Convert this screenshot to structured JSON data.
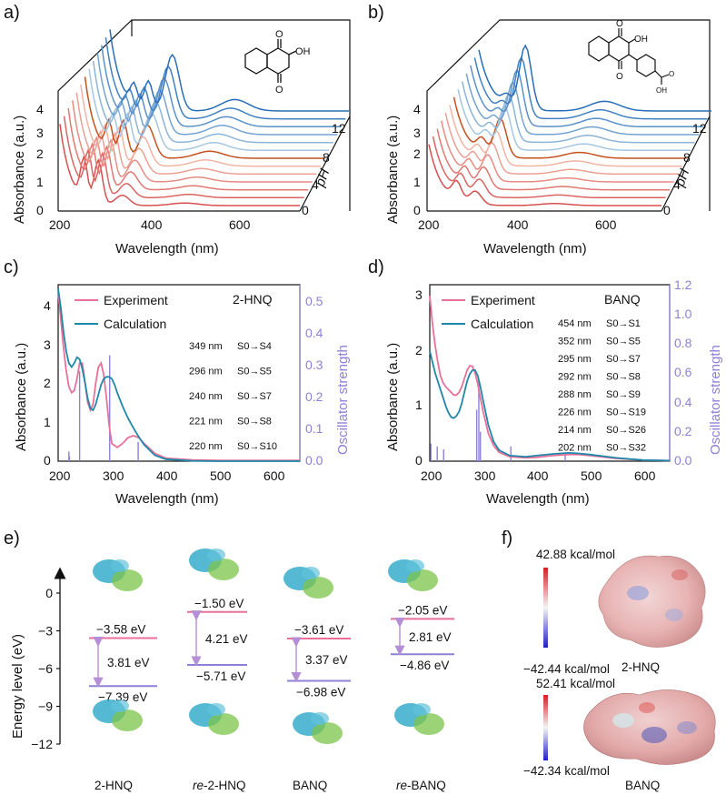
{
  "panels": {
    "a": {
      "letter": "a)",
      "ylabel": "Absorbance (a.u.)",
      "xlabel": "Wavelength (nm)",
      "zlabel": "pH"
    },
    "b": {
      "letter": "b)",
      "ylabel": "Absorbance (a.u.)",
      "xlabel": "Wavelength (nm)",
      "zlabel": "pH"
    },
    "c": {
      "letter": "c)",
      "ylabel": "Absorbance (a.u.)",
      "y2label": "Oscillator strength",
      "xlabel": "Wavelength (nm)",
      "compound": "2-HNQ"
    },
    "d": {
      "letter": "d)",
      "ylabel": "Absorbance (a.u.)",
      "y2label": "Oscillator strength",
      "xlabel": "Wavelength (nm)",
      "compound": "BANQ"
    },
    "e": {
      "letter": "e)",
      "ylabel": "Energy level (eV)"
    },
    "f": {
      "letter": "f)"
    }
  },
  "chart_data": [
    {
      "type": "line",
      "panel": "a",
      "description_free": true,
      "xlabel": "Wavelength (nm)",
      "ylabel": "Absorbance (a.u.)",
      "zlabel": "pH",
      "x_ticks": [
        "200",
        "400",
        "600"
      ],
      "y_ticks": [
        "0",
        "1",
        "2",
        "3",
        "4"
      ],
      "z_ticks": [
        "0",
        "4",
        "8",
        "12"
      ],
      "xlim": [
        200,
        700
      ],
      "ylim": [
        0,
        4.5
      ],
      "zlim": [
        0,
        13
      ],
      "series_count": 13,
      "peaks_nm": [
        250,
        275,
        330
      ]
    },
    {
      "type": "line",
      "panel": "b",
      "xlabel": "Wavelength (nm)",
      "ylabel": "Absorbance (a.u.)",
      "zlabel": "pH",
      "x_ticks": [
        "200",
        "400",
        "600"
      ],
      "y_ticks": [
        "0",
        "1",
        "2",
        "3",
        "4"
      ],
      "z_ticks": [
        "0",
        "4",
        "8",
        "12"
      ],
      "xlim": [
        200,
        700
      ],
      "ylim": [
        0,
        4.5
      ],
      "zlim": [
        0,
        13
      ],
      "series_count": 13,
      "peaks_nm": [
        280,
        300
      ]
    },
    {
      "type": "line",
      "panel": "c",
      "xlabel": "Wavelength (nm)",
      "ylabel": "Absorbance (a.u.)",
      "y2label": "Oscillator strength",
      "xlim": [
        200,
        650
      ],
      "ylim": [
        0,
        4.5
      ],
      "y2lim": [
        0,
        0.55
      ],
      "x_ticks": [
        "200",
        "300",
        "400",
        "500",
        "600"
      ],
      "y_ticks": [
        "0",
        "1",
        "2",
        "3",
        "4"
      ],
      "y2_ticks": [
        "0.0",
        "0.1",
        "0.2",
        "0.3",
        "0.4",
        "0.5"
      ],
      "series": [
        {
          "name": "Experiment",
          "color": "#e8709b",
          "x": [
            200,
            205,
            210,
            215,
            220,
            225,
            230,
            235,
            240,
            245,
            250,
            255,
            260,
            265,
            270,
            275,
            280,
            285,
            290,
            295,
            300,
            310,
            320,
            330,
            340,
            350,
            360,
            380,
            400,
            450,
            500,
            550,
            600,
            650
          ],
          "y": [
            4.3,
            3.6,
            2.9,
            2.3,
            1.9,
            1.75,
            1.8,
            2.1,
            2.5,
            2.5,
            2.0,
            1.5,
            1.3,
            1.45,
            2.0,
            2.4,
            2.5,
            2.2,
            1.6,
            0.9,
            0.45,
            0.35,
            0.45,
            0.6,
            0.65,
            0.6,
            0.45,
            0.2,
            0.08,
            0.03,
            0.02,
            0.02,
            0.02,
            0.02
          ]
        },
        {
          "name": "Calculation",
          "color": "#1f88a8",
          "x": [
            200,
            205,
            210,
            215,
            220,
            225,
            230,
            235,
            240,
            245,
            250,
            255,
            260,
            265,
            270,
            275,
            280,
            285,
            290,
            295,
            300,
            305,
            310,
            320,
            330,
            340,
            350,
            360,
            380,
            400,
            450,
            500,
            550,
            600,
            650
          ],
          "y": [
            4.4,
            3.9,
            3.3,
            2.8,
            2.5,
            2.4,
            2.5,
            2.65,
            2.6,
            2.35,
            2.0,
            1.6,
            1.35,
            1.3,
            1.45,
            1.7,
            1.95,
            2.1,
            2.15,
            2.15,
            2.1,
            1.95,
            1.75,
            1.4,
            1.1,
            0.85,
            0.62,
            0.42,
            0.15,
            0.05,
            0.01,
            0.0,
            0.0,
            0.0,
            0.0
          ]
        }
      ],
      "sticks": {
        "color": "#8e80d8",
        "x": [
          220,
          221,
          240,
          296,
          349
        ],
        "f": [
          0.03,
          0.015,
          0.28,
          0.33,
          0.06
        ]
      },
      "legend": [
        "Experiment",
        "Calculation"
      ],
      "compound": "2-HNQ",
      "transitions": [
        {
          "nm": "349 nm",
          "label": "S0→S4"
        },
        {
          "nm": "296 nm",
          "label": "S0→S5"
        },
        {
          "nm": "240 nm",
          "label": "S0→S7"
        },
        {
          "nm": "221 nm",
          "label": "S0→S8"
        },
        {
          "nm": "220 nm",
          "label": "S0→S10"
        }
      ]
    },
    {
      "type": "line",
      "panel": "d",
      "xlabel": "Wavelength (nm)",
      "ylabel": "Absorbance (a.u.)",
      "y2label": "Oscillator strength",
      "xlim": [
        200,
        650
      ],
      "ylim": [
        0,
        3.2
      ],
      "y2lim": [
        0,
        1.2
      ],
      "x_ticks": [
        "200",
        "300",
        "400",
        "500",
        "600"
      ],
      "y_ticks": [
        "0",
        "1",
        "2",
        "3"
      ],
      "y2_ticks": [
        "0.0",
        "0.2",
        "0.4",
        "0.6",
        "0.8",
        "1.0",
        "1.2"
      ],
      "series": [
        {
          "name": "Experiment",
          "color": "#e8709b",
          "x": [
            200,
            205,
            210,
            215,
            220,
            225,
            230,
            235,
            240,
            245,
            250,
            255,
            260,
            265,
            270,
            275,
            280,
            285,
            290,
            295,
            300,
            310,
            320,
            330,
            350,
            380,
            400,
            430,
            460,
            480,
            500,
            550,
            600,
            650
          ],
          "y": [
            3.0,
            2.5,
            2.1,
            1.8,
            1.55,
            1.42,
            1.35,
            1.3,
            1.25,
            1.2,
            1.2,
            1.25,
            1.35,
            1.5,
            1.65,
            1.73,
            1.72,
            1.6,
            1.4,
            1.15,
            0.9,
            0.5,
            0.28,
            0.16,
            0.08,
            0.06,
            0.07,
            0.1,
            0.12,
            0.12,
            0.1,
            0.05,
            0.02,
            0.01
          ]
        },
        {
          "name": "Calculation",
          "color": "#1f88a8",
          "x": [
            200,
            205,
            210,
            215,
            220,
            225,
            230,
            235,
            240,
            245,
            250,
            255,
            260,
            265,
            270,
            275,
            280,
            285,
            290,
            295,
            300,
            310,
            320,
            330,
            350,
            380,
            400,
            430,
            460,
            480,
            500,
            550,
            600,
            650
          ],
          "y": [
            2.0,
            1.8,
            1.6,
            1.45,
            1.3,
            1.15,
            1.0,
            0.88,
            0.8,
            0.78,
            0.82,
            0.9,
            1.05,
            1.25,
            1.45,
            1.58,
            1.65,
            1.65,
            1.55,
            1.35,
            1.1,
            0.65,
            0.35,
            0.2,
            0.1,
            0.08,
            0.1,
            0.13,
            0.15,
            0.14,
            0.12,
            0.06,
            0.02,
            0.01
          ]
        }
      ],
      "sticks": {
        "color": "#8e80d8",
        "x": [
          202,
          214,
          226,
          288,
          292,
          295,
          352,
          454
        ],
        "f": [
          0.12,
          0.1,
          0.08,
          0.35,
          0.55,
          0.2,
          0.1,
          0.04
        ]
      },
      "legend": [
        "Experiment",
        "Calculation"
      ],
      "compound": "BANQ",
      "transitions": [
        {
          "nm": "454 nm",
          "label": "S0→S1"
        },
        {
          "nm": "352 nm",
          "label": "S0→S5"
        },
        {
          "nm": "295 nm",
          "label": "S0→S7"
        },
        {
          "nm": "292 nm",
          "label": "S0→S8"
        },
        {
          "nm": "288 nm",
          "label": "S0→S9"
        },
        {
          "nm": "226 nm",
          "label": "S0→S19"
        },
        {
          "nm": "214 nm",
          "label": "S0→S26"
        },
        {
          "nm": "202 nm",
          "label": "S0→S32"
        }
      ]
    }
  ],
  "energy_levels": {
    "ylabel": "Energy level (eV)",
    "y_ticks": [
      "0",
      "-3",
      "-6",
      "-9",
      "-12"
    ],
    "columns": [
      {
        "name": "2-HNQ",
        "italic_prefix": "",
        "lumo": -3.58,
        "homo": -7.39,
        "lumo_label": "−3.58 eV",
        "homo_label": "−7.39 eV",
        "gap_label": "3.81 eV"
      },
      {
        "name": "-2-HNQ",
        "italic_prefix": "re",
        "lumo": -1.5,
        "homo": -5.71,
        "lumo_label": "−1.50 eV",
        "homo_label": "−5.71 eV",
        "gap_label": "4.21 eV"
      },
      {
        "name": "BANQ",
        "italic_prefix": "",
        "lumo": -3.61,
        "homo": -6.98,
        "lumo_label": "−3.61 eV",
        "homo_label": "−6.98 eV",
        "gap_label": "3.37 eV"
      },
      {
        "name": "-BANQ",
        "italic_prefix": "re",
        "lumo": -2.05,
        "homo": -4.86,
        "lumo_label": "−2.05 eV",
        "homo_label": "−4.86 eV",
        "gap_label": "2.81 eV"
      }
    ],
    "colors": {
      "lumo": "#e8709b",
      "homo": "#8e80d8",
      "arrow": "#b58fd6"
    }
  },
  "esp": [
    {
      "max": "42.88 kcal/mol",
      "min": "−42.44 kcal/mol",
      "compound": "2-HNQ"
    },
    {
      "max": "52.41 kcal/mol",
      "min": "−42.34 kcal/mol",
      "compound": "BANQ"
    }
  ]
}
